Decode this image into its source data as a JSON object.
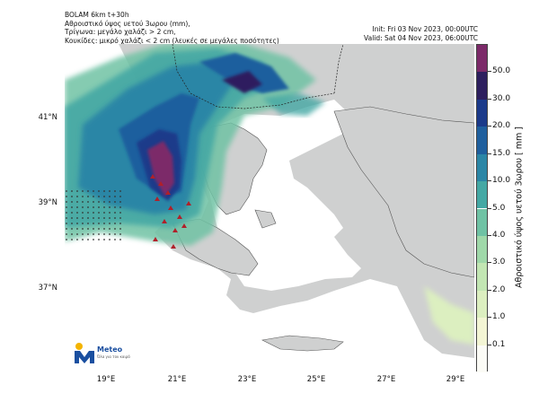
{
  "header": {
    "line1": "BOLAM 6km t+30h",
    "line2": "Αθροιστικό ύψος υετού 3ωρου (mm),",
    "line3": "Τρίγωνα: μεγάλο χαλάζι > 2 cm,",
    "line4": "Κουκίδες: μικρό χαλάζι < 2 cm (λευκές σε μεγάλες ποσότητες)",
    "init": "Init: Fri 03 Nov 2023, 00:00UTC",
    "valid": "Valid: Sat 04 Nov 2023, 06:00UTC"
  },
  "axes": {
    "lat_labels": [
      "41°N",
      "39°N",
      "37°N"
    ],
    "lon_labels": [
      "19°E",
      "21°E",
      "23°E",
      "25°E",
      "27°E",
      "29°E"
    ]
  },
  "colorbar": {
    "title": "Αθροιστικό ύψος υετού 3ωρου [ mm ]",
    "ticks": [
      "0.1",
      "1.0",
      "2.0",
      "3.0",
      "4.0",
      "5.0",
      "10.0",
      "15.0",
      "20.0",
      "30.0",
      "50.0"
    ],
    "colors": [
      "#fbfbf6",
      "#f3f5d4",
      "#dcefc0",
      "#c2e6b3",
      "#9fd8a9",
      "#6fc2a4",
      "#44a8a4",
      "#2b86a6",
      "#1f5f9e",
      "#1b3a8a",
      "#2d1f5e",
      "#7c2a69"
    ]
  },
  "logo": {
    "name": "Meteo",
    "tagline": "Όλα για τον καιρό"
  },
  "map_colors": {
    "sea": "#ffffff",
    "land": "#cfd0d0",
    "border": "#222222",
    "hail": "#b0202a"
  }
}
